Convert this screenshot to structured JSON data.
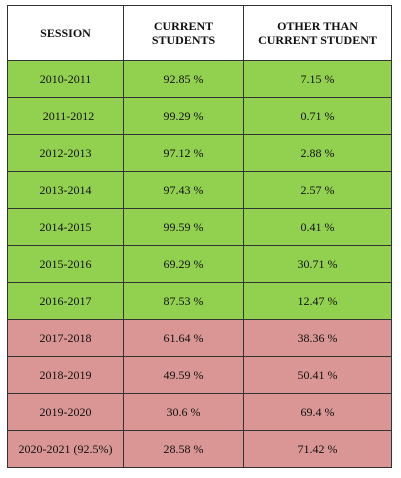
{
  "table": {
    "headers": {
      "session": "SESSION",
      "current_line1": "CURRENT",
      "current_line2": "STUDENTS",
      "other_line1": "OTHER THAN",
      "other_line2": "CURRENT STUDENT"
    },
    "colors": {
      "green": "#92d050",
      "red": "#d99694"
    },
    "rows": [
      {
        "session": "2010-2011",
        "current": "92.85 %",
        "other": "7.15 %",
        "status": "green"
      },
      {
        "session": "2011-2012",
        "current": "99.29 %",
        "other": "0.71 %",
        "status": "green"
      },
      {
        "session": "2012-2013",
        "current": "97.12 %",
        "other": "2.88 %",
        "status": "green"
      },
      {
        "session": "2013-2014",
        "current": "97.43 %",
        "other": "2.57 %",
        "status": "green"
      },
      {
        "session": "2014-2015",
        "current": "99.59 %",
        "other": "0.41 %",
        "status": "green"
      },
      {
        "session": "2015-2016",
        "current": "69.29 %",
        "other": "30.71 %",
        "status": "green"
      },
      {
        "session": "2016-2017",
        "current": "87.53 %",
        "other": "12.47 %",
        "status": "green"
      },
      {
        "session": "2017-2018",
        "current": "61.64 %",
        "other": "38.36 %",
        "status": "red"
      },
      {
        "session": "2018-2019",
        "current": "49.59 %",
        "other": "50.41 %",
        "status": "red"
      },
      {
        "session": "2019-2020",
        "current": "30.6 %",
        "other": "69.4 %",
        "status": "red"
      },
      {
        "session": "2020-2021 (92.5%)",
        "current": "28.58 %",
        "other": "71.42 %",
        "status": "red"
      }
    ]
  }
}
